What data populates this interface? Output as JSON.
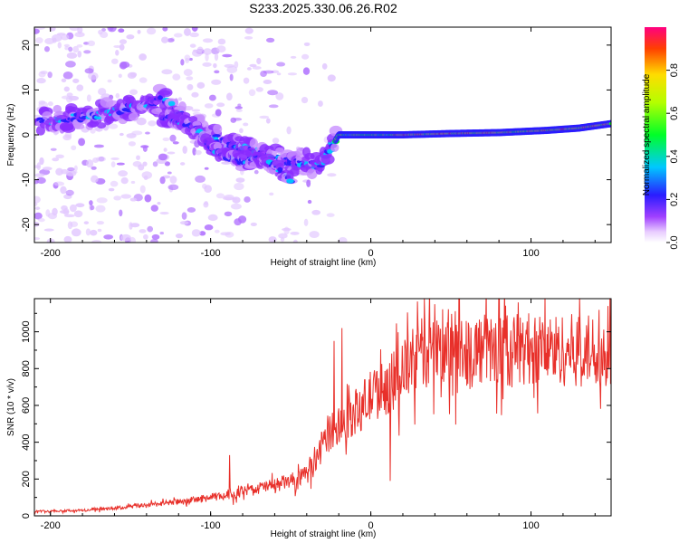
{
  "figure_title": "S233.2025.330.06.26.R02",
  "chart_data": [
    {
      "type": "heatmap",
      "name": "spectrogram",
      "xlabel": "Height of straight line (km)",
      "ylabel": "Frequency (Hz)",
      "xlim": [
        -210,
        150
      ],
      "ylim": [
        -24,
        24
      ],
      "x_ticks": [
        -200,
        -100,
        0,
        100
      ],
      "x_tick_labels": [
        "-200",
        "-100",
        "0",
        "100"
      ],
      "y_ticks": [
        20,
        10,
        0,
        -10,
        -20
      ],
      "y_tick_labels": [
        "20",
        "10",
        "0",
        "-10",
        "-20"
      ],
      "ridge": [
        {
          "x": -205,
          "f": 3
        },
        {
          "x": -180,
          "f": 4
        },
        {
          "x": -160,
          "f": 5
        },
        {
          "x": -140,
          "f": 7
        },
        {
          "x": -130,
          "f": 8
        },
        {
          "x": -120,
          "f": 5
        },
        {
          "x": -110,
          "f": 2
        },
        {
          "x": -100,
          "f": 0
        },
        {
          "x": -90,
          "f": -2
        },
        {
          "x": -80,
          "f": -3
        },
        {
          "x": -70,
          "f": -4
        },
        {
          "x": -60,
          "f": -5
        },
        {
          "x": -50,
          "f": -6
        },
        {
          "x": -40,
          "f": -6
        },
        {
          "x": -32,
          "f": -7
        },
        {
          "x": -25,
          "f": -3
        },
        {
          "x": -20,
          "f": 0
        },
        {
          "x": -10,
          "f": 0
        },
        {
          "x": 0,
          "f": 0
        },
        {
          "x": 20,
          "f": 0
        },
        {
          "x": 50,
          "f": 0.3
        },
        {
          "x": 80,
          "f": 0.5
        },
        {
          "x": 110,
          "f": 1
        },
        {
          "x": 130,
          "f": 1.5
        },
        {
          "x": 150,
          "f": 2.5
        }
      ],
      "lower_branch": [
        {
          "x": -130,
          "f": 4
        },
        {
          "x": -110,
          "f": 2
        },
        {
          "x": -100,
          "f": -3
        },
        {
          "x": -90,
          "f": -5
        },
        {
          "x": -80,
          "f": -6
        },
        {
          "x": -70,
          "f": -5
        },
        {
          "x": -60,
          "f": -7
        },
        {
          "x": -50,
          "f": -10
        }
      ],
      "colorbar": {
        "label": "Normalized spectral amplitude",
        "range": [
          0.0,
          1.0
        ],
        "ticks": [
          0.0,
          0.2,
          0.4,
          0.6,
          0.8
        ],
        "tick_labels": [
          "0.0",
          "0.2",
          "0.4",
          "0.6",
          "0.8"
        ]
      }
    },
    {
      "type": "line",
      "name": "snr",
      "xlabel": "Height of straight line (km)",
      "ylabel": "SNR (10 * v/v)",
      "xlim": [
        -210,
        150
      ],
      "ylim": [
        0,
        1180
      ],
      "x_ticks": [
        -200,
        -100,
        0,
        100
      ],
      "x_tick_labels": [
        "-200",
        "-100",
        "0",
        "100"
      ],
      "y_ticks": [
        0,
        200,
        400,
        600,
        800,
        1000
      ],
      "y_tick_labels": [
        "0",
        "200",
        "400",
        "600",
        "800",
        "1000"
      ],
      "series_color": "#e8302a",
      "trend": [
        {
          "x": -210,
          "y": 25
        },
        {
          "x": -180,
          "y": 30
        },
        {
          "x": -160,
          "y": 40
        },
        {
          "x": -140,
          "y": 60
        },
        {
          "x": -120,
          "y": 75
        },
        {
          "x": -100,
          "y": 100
        },
        {
          "x": -90,
          "y": 110
        },
        {
          "x": -80,
          "y": 130
        },
        {
          "x": -70,
          "y": 150
        },
        {
          "x": -60,
          "y": 170
        },
        {
          "x": -50,
          "y": 190
        },
        {
          "x": -40,
          "y": 220
        },
        {
          "x": -35,
          "y": 280
        },
        {
          "x": -30,
          "y": 390
        },
        {
          "x": -25,
          "y": 460
        },
        {
          "x": -20,
          "y": 500
        },
        {
          "x": -10,
          "y": 560
        },
        {
          "x": 0,
          "y": 650
        },
        {
          "x": 10,
          "y": 700
        },
        {
          "x": 20,
          "y": 780
        },
        {
          "x": 30,
          "y": 880
        },
        {
          "x": 50,
          "y": 910
        },
        {
          "x": 80,
          "y": 900
        },
        {
          "x": 100,
          "y": 910
        },
        {
          "x": 120,
          "y": 900
        },
        {
          "x": 150,
          "y": 900
        }
      ],
      "noise_amplitude": 0.22,
      "spikes": [
        {
          "x": -88,
          "y": 330
        },
        {
          "x": -23,
          "y": 950
        },
        {
          "x": -18,
          "y": 1020
        },
        {
          "x": 12,
          "y": 190
        },
        {
          "x": 40,
          "y": 1150
        },
        {
          "x": 92,
          "y": 1160
        },
        {
          "x": 102,
          "y": 640
        },
        {
          "x": 148,
          "y": 1140
        }
      ]
    }
  ]
}
